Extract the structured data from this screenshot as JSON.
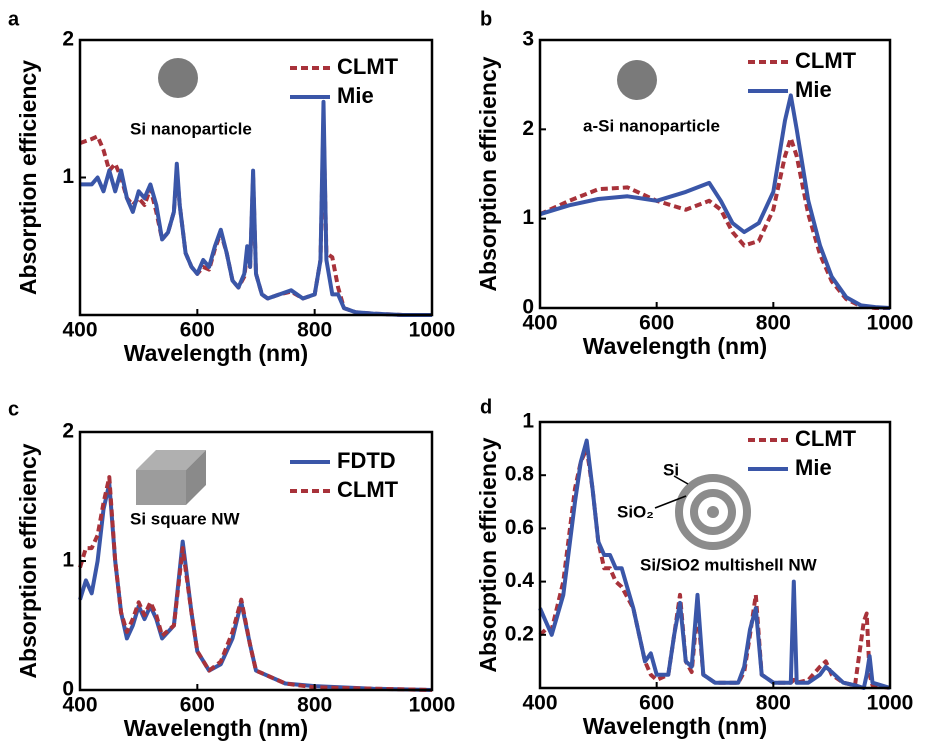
{
  "chart_data": [
    {
      "type": "line",
      "panel_label": "a",
      "xlabel": "Wavelength (nm)",
      "ylabel": "Absorption efficiency",
      "annotations": [
        "Si nanoparticle"
      ],
      "xlim": [
        400,
        1000
      ],
      "xticks": [
        400,
        600,
        800,
        1000
      ],
      "ylim": [
        0,
        2
      ],
      "yticks": [
        1,
        2
      ],
      "legend": "upper right",
      "x": [
        400,
        420,
        430,
        440,
        450,
        460,
        470,
        480,
        490,
        500,
        510,
        520,
        530,
        540,
        550,
        560,
        565,
        570,
        580,
        590,
        600,
        610,
        620,
        630,
        640,
        650,
        660,
        670,
        680,
        685,
        690,
        695,
        700,
        710,
        720,
        740,
        760,
        780,
        800,
        810,
        815,
        820,
        830,
        840,
        850,
        870,
        900,
        950,
        1000
      ],
      "series": [
        {
          "name": "CLMT",
          "color": "#a8323a",
          "dashed": true,
          "values": [
            1.25,
            1.28,
            1.3,
            1.2,
            1.05,
            1.1,
            1.0,
            0.85,
            0.8,
            0.85,
            0.8,
            0.92,
            0.75,
            0.55,
            0.6,
            0.75,
            1.05,
            0.8,
            0.45,
            0.35,
            0.3,
            0.35,
            0.33,
            0.48,
            0.6,
            0.45,
            0.25,
            0.2,
            0.28,
            0.45,
            0.35,
            1.0,
            0.3,
            0.15,
            0.12,
            0.15,
            0.17,
            0.12,
            0.15,
            0.4,
            1.4,
            0.45,
            0.42,
            0.2,
            0.05,
            0.02,
            0.01,
            0,
            0
          ]
        },
        {
          "name": "Mie",
          "color": "#3a56a8",
          "dashed": false,
          "values": [
            0.95,
            0.95,
            1.0,
            0.9,
            1.05,
            0.9,
            1.05,
            0.85,
            0.75,
            0.9,
            0.85,
            0.95,
            0.8,
            0.55,
            0.6,
            0.75,
            1.1,
            0.8,
            0.45,
            0.35,
            0.3,
            0.4,
            0.35,
            0.5,
            0.62,
            0.45,
            0.25,
            0.2,
            0.3,
            0.5,
            0.35,
            1.05,
            0.3,
            0.15,
            0.12,
            0.15,
            0.18,
            0.12,
            0.15,
            0.4,
            1.55,
            0.4,
            0.15,
            0.15,
            0.05,
            0.02,
            0.01,
            0,
            0
          ]
        }
      ]
    },
    {
      "type": "line",
      "panel_label": "b",
      "xlabel": "Wavelength (nm)",
      "ylabel": "Absorption efficiency",
      "annotations": [
        "a-Si nanoparticle"
      ],
      "xlim": [
        400,
        1000
      ],
      "xticks": [
        400,
        600,
        800,
        1000
      ],
      "ylim": [
        0,
        3
      ],
      "yticks": [
        0,
        1,
        2,
        3
      ],
      "legend": "upper right",
      "x": [
        400,
        450,
        500,
        550,
        600,
        650,
        690,
        710,
        730,
        750,
        775,
        800,
        820,
        830,
        840,
        860,
        880,
        900,
        925,
        950,
        975,
        1000
      ],
      "series": [
        {
          "name": "CLMT",
          "color": "#a8323a",
          "dashed": true,
          "values": [
            1.05,
            1.2,
            1.33,
            1.35,
            1.2,
            1.1,
            1.2,
            1.1,
            0.85,
            0.7,
            0.75,
            1.1,
            1.7,
            1.9,
            1.7,
            1.05,
            0.6,
            0.3,
            0.1,
            0.02,
            0,
            0
          ]
        },
        {
          "name": "Mie",
          "color": "#3a56a8",
          "dashed": false,
          "values": [
            1.05,
            1.15,
            1.22,
            1.25,
            1.2,
            1.3,
            1.4,
            1.2,
            0.95,
            0.85,
            0.95,
            1.3,
            2.1,
            2.38,
            2.0,
            1.2,
            0.7,
            0.35,
            0.12,
            0.03,
            0.01,
            0
          ]
        }
      ]
    },
    {
      "type": "line",
      "panel_label": "c",
      "xlabel": "Wavelength (nm)",
      "ylabel": "Absorption efficiency",
      "annotations": [
        "Si square NW"
      ],
      "xlim": [
        400,
        1000
      ],
      "xticks": [
        400,
        600,
        800,
        1000
      ],
      "ylim": [
        0,
        2
      ],
      "yticks": [
        0,
        1,
        2
      ],
      "legend": "upper right",
      "x": [
        400,
        410,
        420,
        430,
        440,
        450,
        460,
        470,
        480,
        490,
        500,
        510,
        520,
        530,
        540,
        560,
        575,
        590,
        600,
        620,
        640,
        660,
        675,
        690,
        700,
        750,
        800,
        900,
        1000
      ],
      "series": [
        {
          "name": "FDTD",
          "color": "#3a56a8",
          "dashed": false,
          "values": [
            0.7,
            0.85,
            0.75,
            1.0,
            1.4,
            1.6,
            1.0,
            0.6,
            0.4,
            0.5,
            0.65,
            0.55,
            0.65,
            0.55,
            0.4,
            0.5,
            1.15,
            0.6,
            0.3,
            0.15,
            0.2,
            0.4,
            0.68,
            0.35,
            0.15,
            0.05,
            0.03,
            0.01,
            0
          ]
        },
        {
          "name": "CLMT",
          "color": "#a8323a",
          "dashed": true,
          "values": [
            0.95,
            1.1,
            1.1,
            1.2,
            1.45,
            1.65,
            1.0,
            0.6,
            0.45,
            0.55,
            0.68,
            0.58,
            0.68,
            0.58,
            0.42,
            0.5,
            1.1,
            0.6,
            0.3,
            0.15,
            0.22,
            0.45,
            0.7,
            0.35,
            0.15,
            0.05,
            0.02,
            0.01,
            0
          ]
        }
      ]
    },
    {
      "type": "line",
      "panel_label": "d",
      "xlabel": "Wavelength (nm)",
      "ylabel": "Absorption efficiency",
      "annotations": [
        "Si/SiO2 multishell NW",
        "Si",
        "SiO₂"
      ],
      "xlim": [
        400,
        1000
      ],
      "xticks": [
        400,
        600,
        800,
        1000
      ],
      "ylim": [
        0,
        1
      ],
      "yticks": [
        0.2,
        0.4,
        0.6,
        0.8,
        1
      ],
      "legend": "upper right",
      "x": [
        400,
        410,
        420,
        440,
        460,
        470,
        480,
        490,
        500,
        510,
        520,
        530,
        540,
        560,
        580,
        590,
        600,
        620,
        630,
        640,
        650,
        660,
        670,
        680,
        700,
        740,
        750,
        760,
        770,
        780,
        800,
        830,
        835,
        840,
        860,
        880,
        890,
        900,
        920,
        940,
        955,
        960,
        965,
        970,
        1000
      ],
      "series": [
        {
          "name": "CLMT",
          "color": "#a8323a",
          "dashed": true,
          "values": [
            0.2,
            0.22,
            0.22,
            0.4,
            0.75,
            0.85,
            0.9,
            0.75,
            0.55,
            0.45,
            0.45,
            0.4,
            0.38,
            0.3,
            0.1,
            0.05,
            0.03,
            0.05,
            0.2,
            0.35,
            0.1,
            0.06,
            0.3,
            0.05,
            0.02,
            0.02,
            0.06,
            0.2,
            0.35,
            0.05,
            0.02,
            0.02,
            0.03,
            0.02,
            0.03,
            0.08,
            0.1,
            0.05,
            0.02,
            0.01,
            0.25,
            0.28,
            0.05,
            0.01,
            0
          ]
        },
        {
          "name": "Mie",
          "color": "#3a56a8",
          "dashed": false,
          "values": [
            0.3,
            0.25,
            0.2,
            0.35,
            0.7,
            0.85,
            0.93,
            0.75,
            0.55,
            0.5,
            0.5,
            0.45,
            0.45,
            0.3,
            0.1,
            0.13,
            0.05,
            0.05,
            0.2,
            0.32,
            0.1,
            0.08,
            0.35,
            0.05,
            0.02,
            0.02,
            0.08,
            0.22,
            0.3,
            0.05,
            0.02,
            0.02,
            0.4,
            0.02,
            0.02,
            0.05,
            0.08,
            0.06,
            0.02,
            0.01,
            0,
            0.05,
            0.12,
            0.02,
            0
          ]
        }
      ]
    }
  ]
}
